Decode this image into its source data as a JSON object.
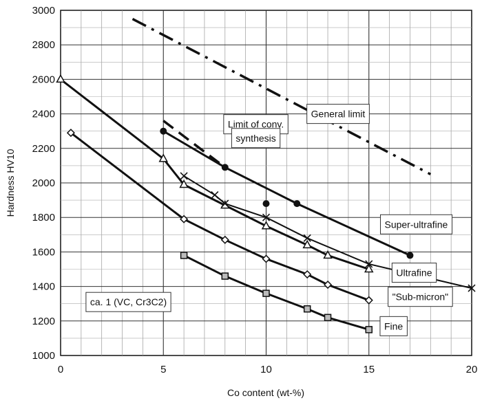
{
  "chart_data": {
    "type": "line",
    "xlabel": "Co content (wt-%)",
    "ylabel": "Hardness HV10",
    "xlim": [
      0,
      20
    ],
    "ylim": [
      1000,
      3000
    ],
    "x_ticks": [
      0,
      5,
      10,
      15,
      20
    ],
    "y_ticks": [
      1000,
      1200,
      1400,
      1600,
      1800,
      2000,
      2200,
      2400,
      2600,
      2800,
      3000
    ],
    "grid": true,
    "series": [
      {
        "name": "Super-ultrafine",
        "marker": "circle",
        "style": "solid",
        "x": [
          5,
          8,
          11.5,
          17
        ],
        "y": [
          2300,
          2090,
          1880,
          1580
        ],
        "extra_points": {
          "x": [
            10
          ],
          "y": [
            1880
          ]
        }
      },
      {
        "name": "Ultrafine",
        "marker": "triangle",
        "style": "solid",
        "x": [
          0,
          5,
          6,
          8,
          10,
          12,
          13,
          15
        ],
        "y": [
          2600,
          2140,
          1990,
          1870,
          1750,
          1640,
          1580,
          1500
        ]
      },
      {
        "marker": "x",
        "style": "solid",
        "x": [
          6,
          7.5,
          8,
          10,
          12,
          15,
          20
        ],
        "y": [
          2040,
          1930,
          1880,
          1800,
          1680,
          1530,
          1390
        ]
      },
      {
        "name": "\"Sub-micron\"",
        "marker": "diamond",
        "style": "solid",
        "x": [
          0.5,
          6,
          8,
          10,
          12,
          13,
          15
        ],
        "y": [
          2290,
          1790,
          1670,
          1560,
          1470,
          1410,
          1320
        ]
      },
      {
        "name": "Fine",
        "marker": "square",
        "style": "solid",
        "x": [
          6,
          8,
          10,
          12,
          13,
          15
        ],
        "y": [
          1580,
          1460,
          1360,
          1270,
          1220,
          1150
        ]
      },
      {
        "name": "General limit",
        "style": "dash-dot",
        "x": [
          3.5,
          18
        ],
        "y": [
          2950,
          2050
        ]
      },
      {
        "name": "Limit of conv. synthesis",
        "style": "dashed",
        "x": [
          5,
          8
        ],
        "y": [
          2360,
          2090
        ]
      }
    ],
    "annotations": [
      {
        "text": "General limit",
        "anchor_x": 13.5,
        "anchor_y": 2380
      },
      {
        "text": "Limit of conv.",
        "anchor_x": 9.5,
        "anchor_y": 2320
      },
      {
        "text": "synthesis",
        "anchor_x": 9.5,
        "anchor_y": 2240
      },
      {
        "text": "Super-ultrafine",
        "anchor_x": 17.3,
        "anchor_y": 1740
      },
      {
        "text": "Ultrafine",
        "anchor_x": 17.2,
        "anchor_y": 1460
      },
      {
        "text": "\"Sub-micron\"",
        "anchor_x": 17.5,
        "anchor_y": 1320
      },
      {
        "text": "Fine",
        "anchor_x": 16.2,
        "anchor_y": 1150
      },
      {
        "text": "ca. 1 (VC, Cr3C2)",
        "anchor_x": 3.3,
        "anchor_y": 1290
      }
    ]
  }
}
